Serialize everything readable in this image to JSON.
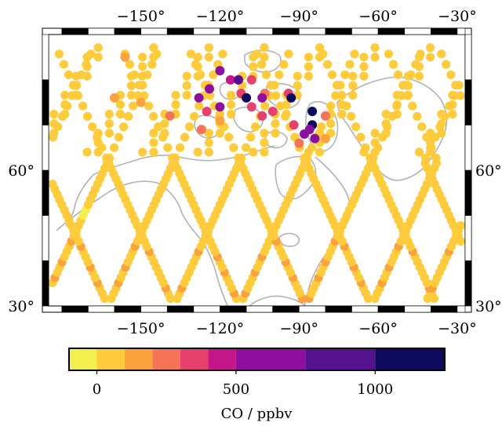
{
  "chart_data": {
    "type": "scatter",
    "projection": "geographic map with coastlines",
    "title": "",
    "xlabel": "",
    "ylabel": "",
    "x_range": [
      -185,
      -27
    ],
    "y_range": [
      30,
      90
    ],
    "xticks": [
      -150,
      -120,
      -90,
      -60,
      -30
    ],
    "yticks": [
      30,
      60
    ],
    "xtick_labels": [
      "−150°",
      "−120°",
      "−90°",
      "−60°",
      "−30°"
    ],
    "ytick_labels": [
      "30°",
      "60°"
    ],
    "grid": false,
    "coastline_color": "#b3b3b3",
    "colorbar": {
      "label": "CO / ppbv",
      "orientation": "horizontal",
      "range": [
        -100,
        1250
      ],
      "ticks": [
        0,
        500,
        1000
      ],
      "tick_labels": [
        "0",
        "500",
        "1000"
      ],
      "bins": [
        {
          "from": -100,
          "to": 0,
          "color": "#f3ef4c"
        },
        {
          "from": 0,
          "to": 100,
          "color": "#fdcb3b"
        },
        {
          "from": 100,
          "to": 200,
          "color": "#fba13e"
        },
        {
          "from": 200,
          "to": 300,
          "color": "#f57458"
        },
        {
          "from": 300,
          "to": 400,
          "color": "#e6406e"
        },
        {
          "from": 400,
          "to": 500,
          "color": "#c4168b"
        },
        {
          "from": 500,
          "to": 750,
          "color": "#8e0f9f"
        },
        {
          "from": 750,
          "to": 1000,
          "color": "#56118f"
        },
        {
          "from": 1000,
          "to": 1250,
          "color": "#0e0a5e"
        }
      ]
    },
    "tracks": {
      "description": "Satellite orbit swath observations (overlapping descending tracks)",
      "track_crossing_longitudes": [
        -175,
        -150,
        -125,
        -100,
        -75,
        -50,
        -30
      ],
      "lat_range_dense": [
        30,
        62
      ],
      "lat_range_sparse": [
        62,
        88
      ],
      "typical_value_ppbv": 60,
      "south_value_ppbv": 150
    },
    "high_values": [
      {
        "lon": -120,
        "lat": 82,
        "value": 600
      },
      {
        "lon": -116,
        "lat": 80,
        "value": 400
      },
      {
        "lon": -113,
        "lat": 80,
        "value": 950
      },
      {
        "lon": -108,
        "lat": 80,
        "value": 350
      },
      {
        "lon": -124,
        "lat": 78,
        "value": 600
      },
      {
        "lon": -112,
        "lat": 77,
        "value": 350
      },
      {
        "lon": -103,
        "lat": 77,
        "value": 250
      },
      {
        "lon": -94,
        "lat": 77,
        "value": 350
      },
      {
        "lon": -128,
        "lat": 76,
        "value": 700
      },
      {
        "lon": -110,
        "lat": 76,
        "value": 1100
      },
      {
        "lon": -104,
        "lat": 76,
        "value": 700
      },
      {
        "lon": -93,
        "lat": 76,
        "value": 1000
      },
      {
        "lon": -120,
        "lat": 74,
        "value": 500
      },
      {
        "lon": -108,
        "lat": 74,
        "value": 350
      },
      {
        "lon": -100,
        "lat": 73,
        "value": 300
      },
      {
        "lon": -85,
        "lat": 73,
        "value": 1200
      },
      {
        "lon": -125,
        "lat": 73,
        "value": 300
      },
      {
        "lon": -85,
        "lat": 70,
        "value": 1250
      },
      {
        "lon": -92,
        "lat": 70,
        "value": 300
      },
      {
        "lon": -104,
        "lat": 72,
        "value": 300
      },
      {
        "lon": -80,
        "lat": 72,
        "value": 250
      },
      {
        "lon": -86,
        "lat": 69,
        "value": 600
      },
      {
        "lon": -88,
        "lat": 68,
        "value": 700
      },
      {
        "lon": -84,
        "lat": 67,
        "value": 600
      },
      {
        "lon": -90,
        "lat": 66,
        "value": 250
      },
      {
        "lon": -127,
        "lat": 69,
        "value": 200
      },
      {
        "lon": -139,
        "lat": 72,
        "value": 200
      },
      {
        "lon": -150,
        "lat": 75,
        "value": 150
      },
      {
        "lon": -80,
        "lat": 67,
        "value": 150
      },
      {
        "lon": -156,
        "lat": 85,
        "value": 150
      },
      {
        "lon": -160,
        "lat": 76,
        "value": 150
      },
      {
        "lon": -120,
        "lat": 71,
        "value": 150
      }
    ]
  }
}
